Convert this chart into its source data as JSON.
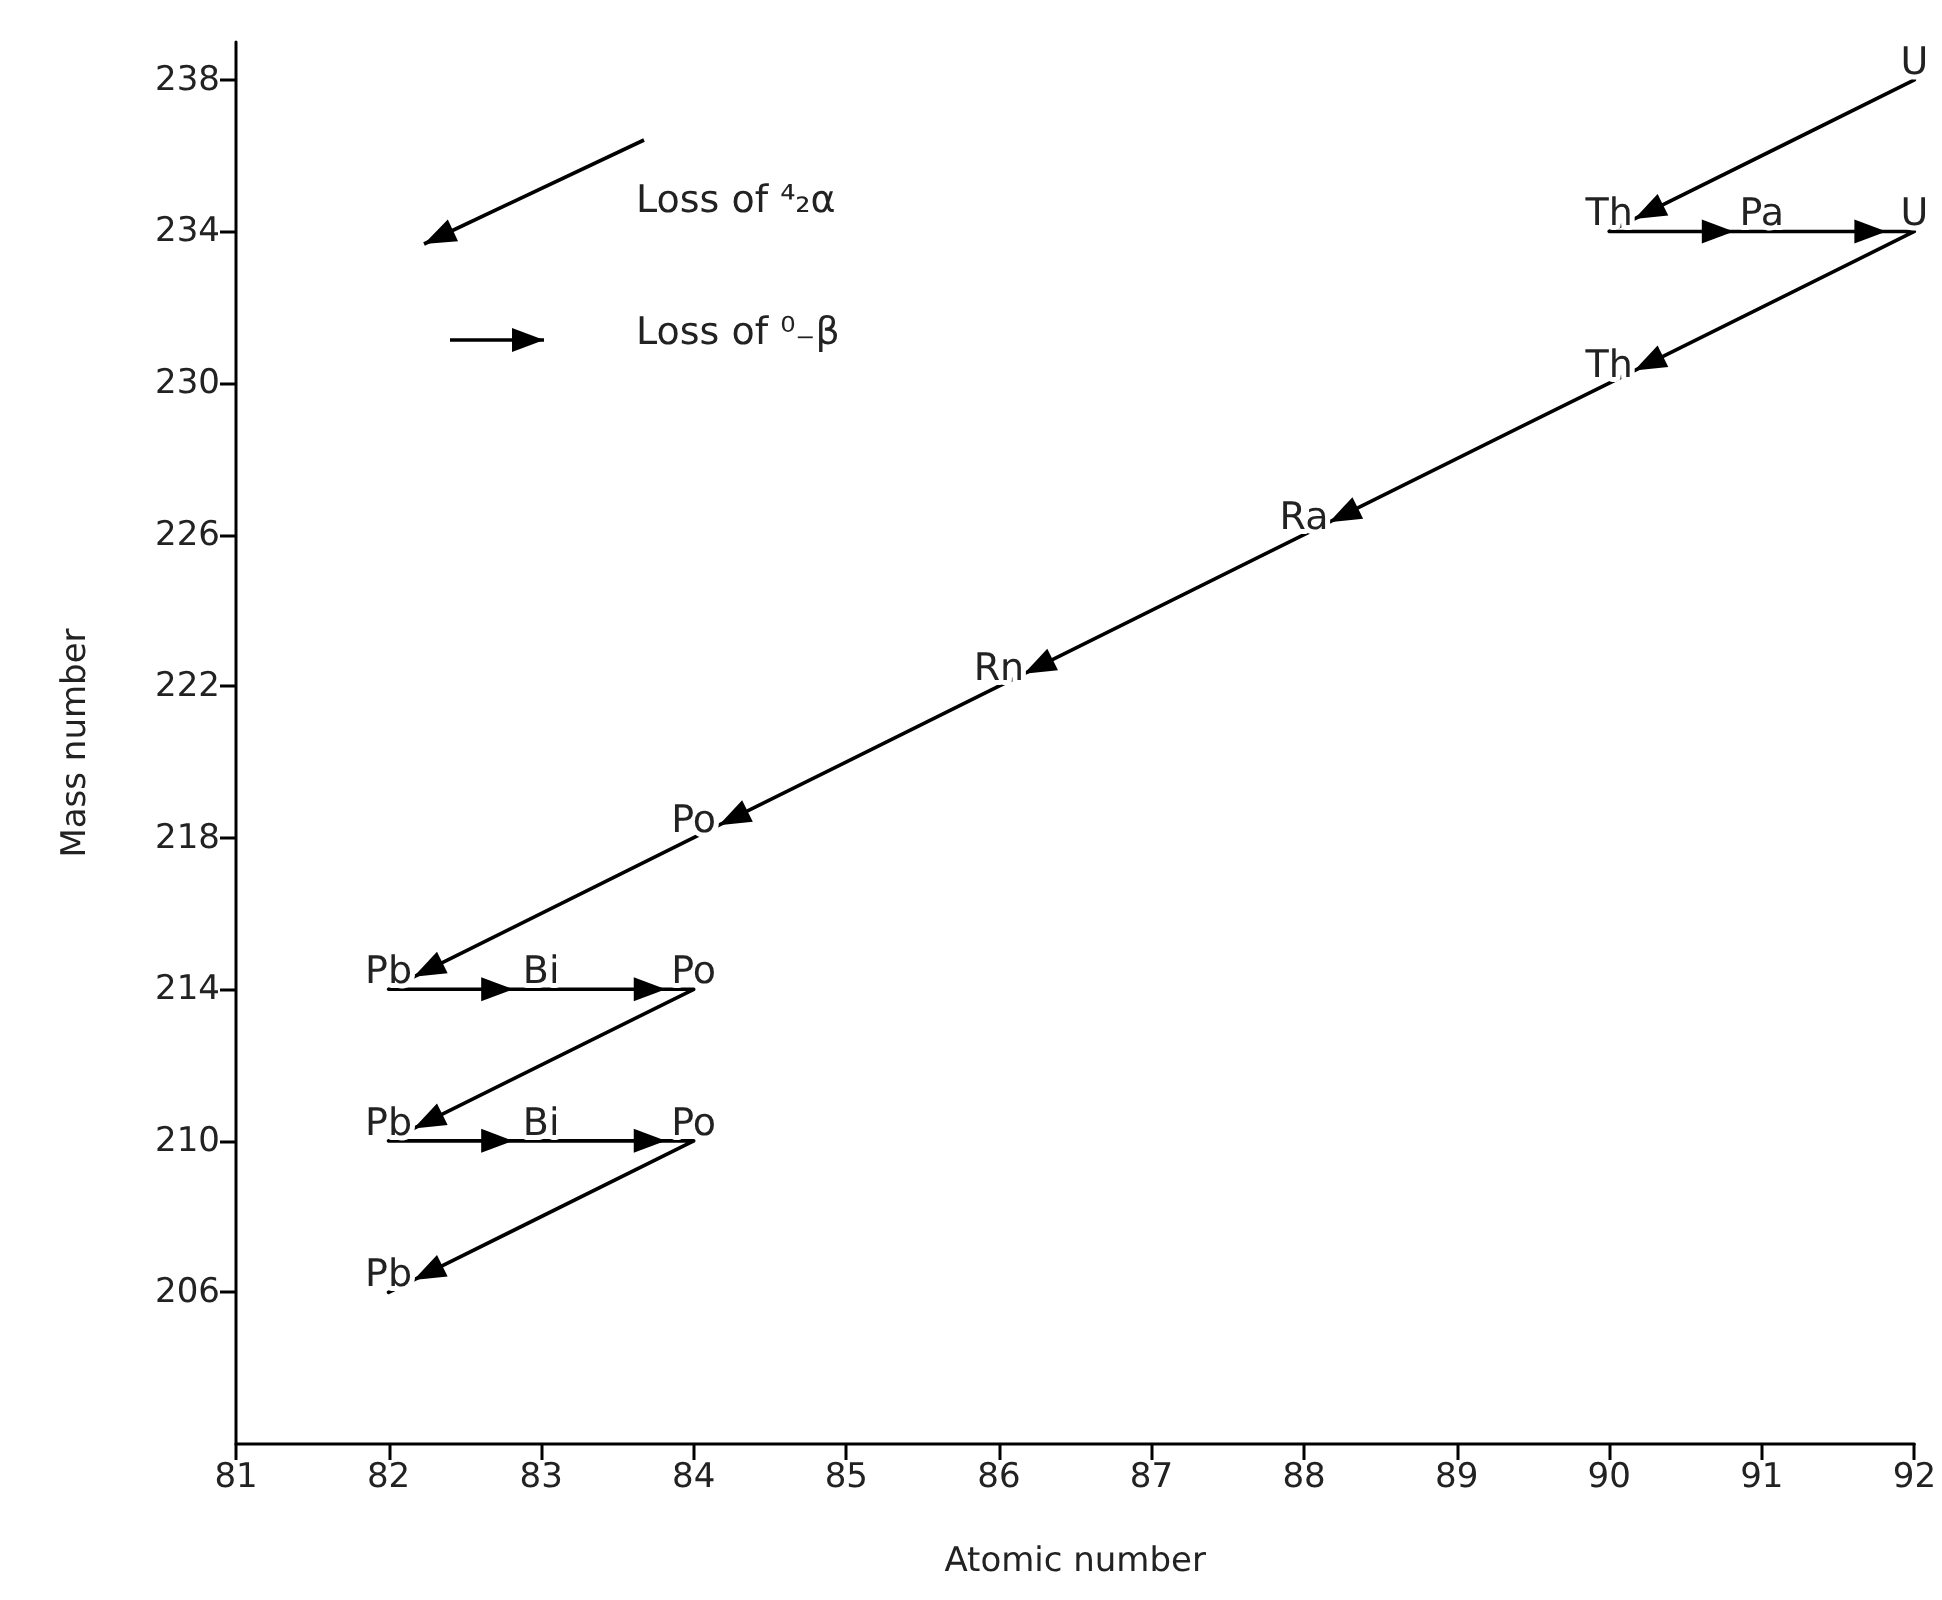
{
  "chart_data": {
    "type": "line",
    "xlabel": "Atomic number",
    "ylabel": "Mass number",
    "x": [
      92,
      90,
      91,
      92,
      90,
      88,
      86,
      84,
      82,
      83,
      84,
      82,
      83,
      84,
      82
    ],
    "series": [
      {
        "color": "#000000",
        "values": [
          238,
          234,
          234,
          234,
          230,
          226,
          222,
          218,
          214,
          214,
          214,
          210,
          210,
          210,
          206
        ]
      }
    ],
    "xlim": [
      81,
      92
    ],
    "xticks": [
      81,
      82,
      83,
      84,
      85,
      86,
      87,
      88,
      89,
      90,
      91,
      92
    ],
    "ylim": [
      202,
      239
    ],
    "yticks": [
      206,
      210,
      214,
      218,
      222,
      226,
      230,
      234,
      238
    ],
    "grid": false,
    "marker": "none",
    "line_style": "solid",
    "annotations": [
      "Loss of ⁴₂α",
      "Loss of ⁰₋β",
      {
        "text": "U",
        "x": 92,
        "y": 238
      },
      {
        "text": "Th",
        "x": 90,
        "y": 234
      },
      {
        "text": "Pa",
        "x": 91,
        "y": 234
      },
      {
        "text": "U",
        "x": 92,
        "y": 234
      },
      {
        "text": "Th",
        "x": 90,
        "y": 230
      },
      {
        "text": "Ra",
        "x": 88,
        "y": 226
      },
      {
        "text": "Rn",
        "x": 86,
        "y": 222
      },
      {
        "text": "Po",
        "x": 84,
        "y": 218
      },
      {
        "text": "Pb",
        "x": 82,
        "y": 214
      },
      {
        "text": "Bi",
        "x": 83,
        "y": 214
      },
      {
        "text": "Po",
        "x": 84,
        "y": 214
      },
      {
        "text": "Pb",
        "x": 82,
        "y": 210
      },
      {
        "text": "Bi",
        "x": 83,
        "y": 210
      },
      {
        "text": "Po",
        "x": 84,
        "y": 210
      },
      {
        "text": "Pb",
        "x": 82,
        "y": 206
      }
    ]
  }
}
